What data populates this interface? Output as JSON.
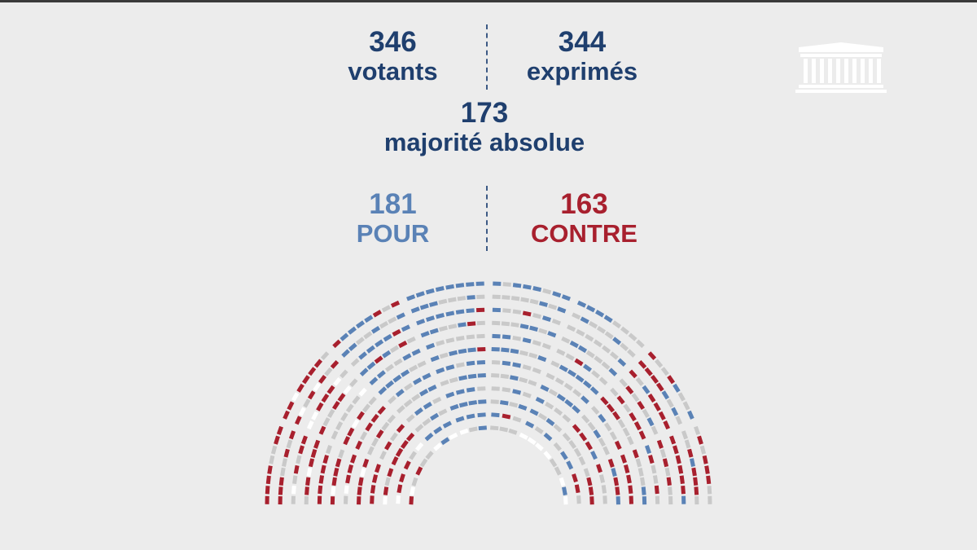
{
  "header": {
    "votants": {
      "value": "346",
      "label": "votants"
    },
    "exprimes": {
      "value": "344",
      "label": "exprimés"
    },
    "majorite": {
      "value": "173",
      "label": "majorité absolue"
    }
  },
  "result": {
    "pour": {
      "value": "181",
      "label": "POUR"
    },
    "contre": {
      "value": "163",
      "label": "CONTRE"
    }
  },
  "colors": {
    "navy": "#1f3f6e",
    "pour": "#5a82b6",
    "contre": "#a8202e",
    "absent": "#c9c9c9",
    "empty": "#ffffff",
    "background": "#ececec"
  },
  "icons": {
    "logo": "assemblee-nationale-building-icon"
  }
}
